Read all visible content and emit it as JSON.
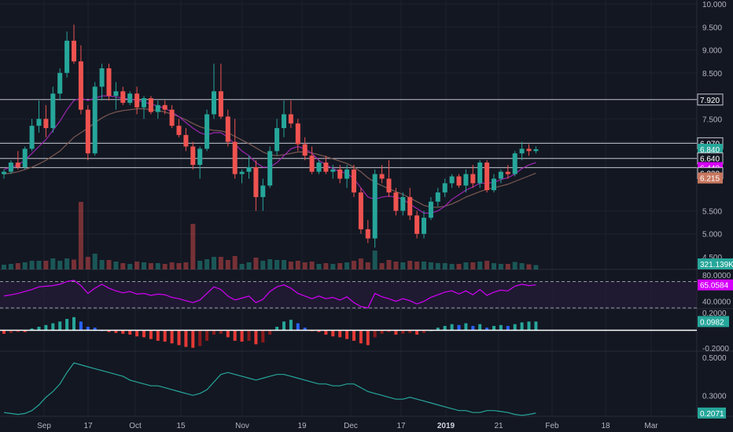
{
  "theme": {
    "background": "#131722",
    "grid": "#1e2230",
    "axis_text": "#b2b5be",
    "up": "#26a69a",
    "down": "#ef5350",
    "ma_fast": "#9c27b0",
    "ma_slow": "#7c5a52",
    "hline": "#c3c6ce",
    "rsi": "#d500f9",
    "osc_line": "#26a69a"
  },
  "chart_data": [
    {
      "type": "candlestick",
      "panel": "price",
      "ylim": [
        4.5,
        10.0
      ],
      "y_ticks": [
        "10.000",
        "9.500",
        "9.000",
        "8.500",
        "7.500",
        "7.000",
        "5.500",
        "5.000"
      ],
      "x_ticks": [
        "Sep",
        "17",
        "Oct",
        "15",
        "Nov",
        "19",
        "Dec",
        "17",
        "2019",
        "21",
        "Feb",
        "18",
        "Mar"
      ],
      "horizontal_lines": [
        7.92,
        6.97,
        6.64,
        6.44
      ],
      "price_labels": [
        {
          "text": "7.920",
          "value": 7.92,
          "style": "line"
        },
        {
          "text": "6.970",
          "value": 6.97,
          "style": "line"
        },
        {
          "text": "6.840",
          "value": 6.84,
          "color": "#26a69a"
        },
        {
          "text": "6.640",
          "value": 6.64,
          "style": "line"
        },
        {
          "text": "6.440",
          "value": 6.44,
          "color": "#d500f9"
        },
        {
          "text": "6.320",
          "value": 6.32,
          "style": "line"
        },
        {
          "text": "6.215",
          "value": 6.215,
          "color": "#c8775f"
        }
      ],
      "candles": [
        [
          6.3,
          6.4,
          6.2,
          6.35
        ],
        [
          6.35,
          6.6,
          6.3,
          6.55
        ],
        [
          6.55,
          6.8,
          6.4,
          6.45
        ],
        [
          6.45,
          6.9,
          6.4,
          6.85
        ],
        [
          6.85,
          7.5,
          6.8,
          7.35
        ],
        [
          7.35,
          7.9,
          7.2,
          7.5
        ],
        [
          7.5,
          7.8,
          7.1,
          7.3
        ],
        [
          7.3,
          8.2,
          7.2,
          8.05
        ],
        [
          8.05,
          8.6,
          7.9,
          8.5
        ],
        [
          8.5,
          9.4,
          8.4,
          9.2
        ],
        [
          9.2,
          9.55,
          8.7,
          8.75
        ],
        [
          8.75,
          9.1,
          7.6,
          7.7
        ],
        [
          7.7,
          7.8,
          6.6,
          6.75
        ],
        [
          6.75,
          8.3,
          6.7,
          8.2
        ],
        [
          8.2,
          8.7,
          7.9,
          8.6
        ],
        [
          8.6,
          8.7,
          7.9,
          8.0
        ],
        [
          8.0,
          8.3,
          7.7,
          8.1
        ],
        [
          8.1,
          8.2,
          7.8,
          7.85
        ],
        [
          7.85,
          8.1,
          7.8,
          8.05
        ],
        [
          8.05,
          8.2,
          7.6,
          7.75
        ],
        [
          7.75,
          8.0,
          7.5,
          7.95
        ],
        [
          7.95,
          8.0,
          7.6,
          7.65
        ],
        [
          7.65,
          7.9,
          7.5,
          7.8
        ],
        [
          7.8,
          7.9,
          7.6,
          7.7
        ],
        [
          7.7,
          7.8,
          7.3,
          7.35
        ],
        [
          7.35,
          7.5,
          7.1,
          7.15
        ],
        [
          7.15,
          7.3,
          6.8,
          6.9
        ],
        [
          6.9,
          7.0,
          6.4,
          6.5
        ],
        [
          6.5,
          6.9,
          6.2,
          6.85
        ],
        [
          6.85,
          7.7,
          6.8,
          7.6
        ],
        [
          7.6,
          8.7,
          7.5,
          8.1
        ],
        [
          8.1,
          8.7,
          7.5,
          7.55
        ],
        [
          7.55,
          7.7,
          6.9,
          7.0
        ],
        [
          7.0,
          7.5,
          6.2,
          6.3
        ],
        [
          6.3,
          6.4,
          6.1,
          6.35
        ],
        [
          6.35,
          6.7,
          6.2,
          6.45
        ],
        [
          6.45,
          6.6,
          5.5,
          5.8
        ],
        [
          5.8,
          6.2,
          5.5,
          6.05
        ],
        [
          6.05,
          6.9,
          6.0,
          6.8
        ],
        [
          6.8,
          7.5,
          6.7,
          7.3
        ],
        [
          7.3,
          7.9,
          7.1,
          7.6
        ],
        [
          7.6,
          7.9,
          7.3,
          7.4
        ],
        [
          7.4,
          7.5,
          6.8,
          6.95
        ],
        [
          6.95,
          7.1,
          6.6,
          6.7
        ],
        [
          6.7,
          6.9,
          6.3,
          6.35
        ],
        [
          6.35,
          6.6,
          6.3,
          6.55
        ],
        [
          6.55,
          6.7,
          6.3,
          6.35
        ],
        [
          6.35,
          6.5,
          6.2,
          6.4
        ],
        [
          6.4,
          6.5,
          6.1,
          6.2
        ],
        [
          6.2,
          6.5,
          6.0,
          6.4
        ],
        [
          6.4,
          6.5,
          5.8,
          5.9
        ],
        [
          5.9,
          6.0,
          5.0,
          5.1
        ],
        [
          5.1,
          5.3,
          4.8,
          4.9
        ],
        [
          4.9,
          6.4,
          4.7,
          6.3
        ],
        [
          6.3,
          6.5,
          6.1,
          6.2
        ],
        [
          6.2,
          6.6,
          5.8,
          5.9
        ],
        [
          5.9,
          6.0,
          5.4,
          5.5
        ],
        [
          5.5,
          5.9,
          5.4,
          5.8
        ],
        [
          5.8,
          6.0,
          5.3,
          5.4
        ],
        [
          5.4,
          5.5,
          4.9,
          5.0
        ],
        [
          5.0,
          5.5,
          4.9,
          5.35
        ],
        [
          5.35,
          5.8,
          5.3,
          5.7
        ],
        [
          5.7,
          6.0,
          5.6,
          5.9
        ],
        [
          5.9,
          6.2,
          5.8,
          6.1
        ],
        [
          6.1,
          6.3,
          6.0,
          6.25
        ],
        [
          6.25,
          6.3,
          6.0,
          6.05
        ],
        [
          6.05,
          6.4,
          5.9,
          6.3
        ],
        [
          6.3,
          6.5,
          6.0,
          6.1
        ],
        [
          6.1,
          6.6,
          6.0,
          6.55
        ],
        [
          6.55,
          6.6,
          5.9,
          5.95
        ],
        [
          5.95,
          6.3,
          5.9,
          6.2
        ],
        [
          6.2,
          6.4,
          6.1,
          6.35
        ],
        [
          6.35,
          6.5,
          6.2,
          6.3
        ],
        [
          6.3,
          6.8,
          6.25,
          6.75
        ],
        [
          6.75,
          7.0,
          6.6,
          6.85
        ],
        [
          6.85,
          6.95,
          6.7,
          6.8
        ],
        [
          6.8,
          6.9,
          6.75,
          6.84
        ]
      ],
      "moving_average_fast": [
        6.4,
        6.45,
        6.5,
        6.6,
        6.75,
        6.9,
        7.05,
        7.25,
        7.45,
        7.7,
        7.9,
        7.95,
        7.9,
        7.95,
        8.0,
        8.0,
        7.98,
        7.95,
        7.93,
        7.9,
        7.87,
        7.82,
        7.78,
        7.73,
        7.65,
        7.55,
        7.42,
        7.3,
        7.2,
        7.15,
        7.2,
        7.2,
        7.1,
        6.95,
        6.8,
        6.7,
        6.55,
        6.45,
        6.45,
        6.55,
        6.7,
        6.85,
        6.9,
        6.85,
        6.75,
        6.6,
        6.5,
        6.42,
        6.35,
        6.32,
        6.2,
        6.0,
        5.8,
        5.75,
        5.8,
        5.82,
        5.8,
        5.75,
        5.65,
        5.55,
        5.45,
        5.45,
        5.5,
        5.6,
        5.75,
        5.85,
        5.95,
        6.02,
        6.1,
        6.1,
        6.12,
        6.18,
        6.22,
        6.3,
        6.42,
        6.5,
        6.55
      ],
      "moving_average_slow": [
        6.3,
        6.32,
        6.35,
        6.4,
        6.45,
        6.52,
        6.6,
        6.7,
        6.8,
        6.95,
        7.1,
        7.2,
        7.3,
        7.42,
        7.52,
        7.6,
        7.65,
        7.68,
        7.7,
        7.72,
        7.72,
        7.7,
        7.68,
        7.65,
        7.6,
        7.55,
        7.48,
        7.4,
        7.33,
        7.28,
        7.25,
        7.24,
        7.2,
        7.12,
        7.04,
        6.96,
        6.87,
        6.78,
        6.72,
        6.7,
        6.72,
        6.75,
        6.78,
        6.78,
        6.76,
        6.72,
        6.68,
        6.63,
        6.58,
        6.53,
        6.45,
        6.35,
        6.22,
        6.12,
        6.05,
        5.98,
        5.92,
        5.86,
        5.78,
        5.7,
        5.62,
        5.58,
        5.58,
        5.6,
        5.65,
        5.72,
        5.8,
        5.86,
        5.92,
        5.97,
        6.0,
        6.04,
        6.08,
        6.14,
        6.2,
        6.26,
        6.32
      ],
      "volume_label": "321.139K"
    },
    {
      "type": "line",
      "panel": "rsi",
      "ylim": [
        30,
        85
      ],
      "y_ticks": [
        "80.0000",
        "40.0000"
      ],
      "bands": [
        70,
        30
      ],
      "current_label": "65.0584",
      "values": [
        48,
        50,
        52,
        55,
        58,
        62,
        63,
        64,
        66,
        70,
        72,
        64,
        52,
        60,
        66,
        60,
        56,
        53,
        55,
        51,
        52,
        49,
        51,
        50,
        46,
        44,
        41,
        38,
        42,
        52,
        62,
        58,
        48,
        42,
        45,
        48,
        38,
        43,
        55,
        62,
        65,
        60,
        52,
        48,
        44,
        48,
        44,
        46,
        42,
        47,
        38,
        32,
        30,
        52,
        47,
        44,
        40,
        44,
        41,
        36,
        40,
        46,
        50,
        54,
        56,
        51,
        56,
        50,
        58,
        49,
        54,
        57,
        56,
        63,
        66,
        64,
        65
      ]
    },
    {
      "type": "bar",
      "panel": "oscillator",
      "ylim": [
        -0.22,
        0.22
      ],
      "y_ticks": [
        "0.2000",
        "-0.2000"
      ],
      "current_label": "0.0982",
      "values": [
        -0.04,
        -0.03,
        -0.02,
        -0.02,
        0.02,
        0.04,
        0.06,
        0.08,
        0.1,
        0.13,
        0.15,
        0.1,
        0.04,
        0.03,
        0.0,
        -0.02,
        -0.03,
        -0.04,
        -0.05,
        -0.07,
        -0.08,
        -0.1,
        -0.12,
        -0.13,
        -0.15,
        -0.17,
        -0.19,
        -0.2,
        -0.18,
        -0.12,
        -0.05,
        -0.04,
        -0.08,
        -0.12,
        -0.13,
        -0.12,
        -0.16,
        -0.14,
        -0.05,
        0.04,
        0.1,
        0.12,
        0.08,
        0.03,
        -0.01,
        -0.02,
        -0.05,
        -0.07,
        -0.08,
        -0.1,
        -0.12,
        -0.15,
        -0.17,
        -0.08,
        -0.04,
        -0.02,
        -0.05,
        -0.04,
        -0.03,
        -0.05,
        -0.03,
        0.0,
        0.03,
        0.05,
        0.07,
        0.06,
        0.08,
        0.05,
        0.07,
        0.03,
        0.05,
        0.06,
        0.05,
        0.07,
        0.09,
        0.1,
        0.1
      ]
    },
    {
      "type": "line",
      "panel": "volatility",
      "ylim": [
        0.19,
        0.52
      ],
      "y_ticks": [
        "0.5000",
        "0.3000"
      ],
      "current_label": "0.2071",
      "values": [
        0.21,
        0.205,
        0.2,
        0.205,
        0.22,
        0.25,
        0.29,
        0.32,
        0.36,
        0.42,
        0.47,
        0.46,
        0.45,
        0.44,
        0.43,
        0.42,
        0.41,
        0.4,
        0.38,
        0.37,
        0.36,
        0.35,
        0.35,
        0.34,
        0.33,
        0.32,
        0.31,
        0.3,
        0.31,
        0.33,
        0.37,
        0.41,
        0.42,
        0.41,
        0.4,
        0.39,
        0.38,
        0.39,
        0.4,
        0.41,
        0.41,
        0.4,
        0.39,
        0.38,
        0.37,
        0.36,
        0.36,
        0.35,
        0.35,
        0.36,
        0.36,
        0.34,
        0.32,
        0.31,
        0.3,
        0.29,
        0.28,
        0.28,
        0.29,
        0.28,
        0.27,
        0.26,
        0.25,
        0.24,
        0.23,
        0.22,
        0.22,
        0.21,
        0.21,
        0.22,
        0.22,
        0.215,
        0.21,
        0.2,
        0.195,
        0.2,
        0.2071
      ]
    }
  ]
}
